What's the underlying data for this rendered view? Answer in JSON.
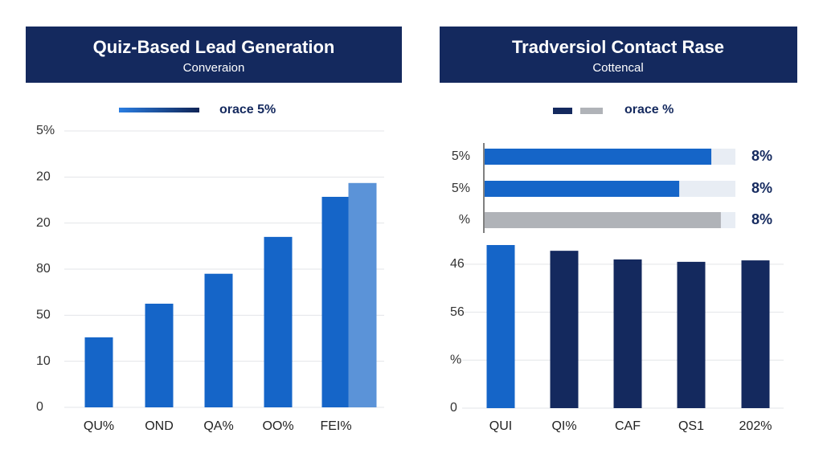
{
  "chart_data": [
    {
      "type": "bar",
      "title": "Quiz-Based Lead Generation",
      "subtitle": "Converaion",
      "legend": {
        "label": "orace 5%",
        "colors": [
          "#2a7de1",
          "#0f2456"
        ]
      },
      "categories": [
        "QU%",
        "OND",
        "QA%",
        "OO%",
        "FEI%",
        null
      ],
      "values": [
        1.52,
        2.25,
        2.9,
        3.7,
        4.57,
        4.87
      ],
      "colors": [
        "#1565c8",
        "#1565c8",
        "#1565c8",
        "#1565c8",
        "#1565c8",
        "#5b93d8"
      ],
      "ylim": [
        0,
        6
      ],
      "yticks": [
        0,
        {
          "value": 1,
          "label": "10"
        },
        {
          "value": 2,
          "label": "50"
        },
        {
          "value": 3,
          "label": "80"
        },
        {
          "value": 4,
          "label": "20"
        },
        {
          "value": 5,
          "label": "20"
        },
        {
          "value": 6,
          "label": "5%"
        }
      ],
      "grid": true
    },
    {
      "type": "hbar",
      "title": "Tradversiol Contact Rase",
      "subtitle": "Cottencal",
      "legend": {
        "label": "orace %",
        "colors": [
          "#14295e",
          "#b0b3b8"
        ]
      },
      "categories": [
        "5%",
        "5%",
        "%"
      ],
      "values": [
        90.4,
        77.6,
        94.2
      ],
      "annotations": [
        "8%",
        "8%",
        "8%"
      ],
      "colors": [
        "#1565c8",
        "#1565c8",
        "#b0b3b8"
      ],
      "xlim": [
        0,
        100
      ]
    },
    {
      "type": "bar",
      "categories": [
        "QUI",
        "QI%",
        "CAF",
        "QS1",
        "202%"
      ],
      "values": [
        3.4,
        3.28,
        3.1,
        3.05,
        3.08
      ],
      "colors": [
        "#1565c8",
        "#14295e",
        "#14295e",
        "#14295e",
        "#14295e"
      ],
      "ylim": [
        0,
        3.45
      ],
      "yticks": [
        0,
        {
          "value": 1,
          "label": "%"
        },
        {
          "value": 2,
          "label": "56"
        },
        {
          "value": 3,
          "label": "46"
        }
      ],
      "grid": true
    }
  ]
}
